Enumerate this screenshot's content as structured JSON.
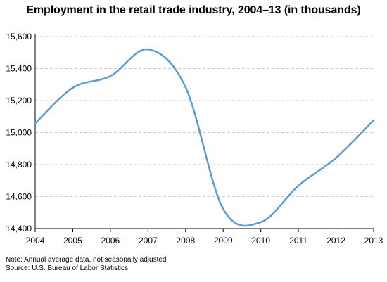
{
  "chart_data": {
    "type": "line",
    "title": "Employment in the retail trade industry, 2004–13 (in thousands)",
    "xlabel": "",
    "ylabel": "",
    "x": [
      2004,
      2005,
      2006,
      2007,
      2008,
      2009,
      2010,
      2011,
      2012,
      2013
    ],
    "series": [
      {
        "values": [
          15058,
          15280,
          15353,
          15520,
          15283,
          14522,
          14440,
          14668,
          14842,
          15077
        ]
      }
    ],
    "xlim": [
      2004,
      2013
    ],
    "ylim": [
      14400,
      15600
    ],
    "yticks": [
      14400,
      14600,
      14800,
      15000,
      15200,
      15400,
      15600
    ],
    "ytick_labels": [
      "14,400",
      "14,600",
      "14,800",
      "15,000",
      "15,200",
      "15,400",
      "15,600"
    ],
    "xtick_labels": [
      "2004",
      "2005",
      "2006",
      "2007",
      "2008",
      "2009",
      "2010",
      "2011",
      "2012",
      "2013"
    ],
    "grid": "horizontal dashed",
    "line_color": "#5b9bd5",
    "gridline_color": "#cccccc"
  },
  "notes": {
    "note": "Note: Annual average data, not seasonally adjusted",
    "source": "Source: U.S. Bureau of Labor Statistics"
  }
}
